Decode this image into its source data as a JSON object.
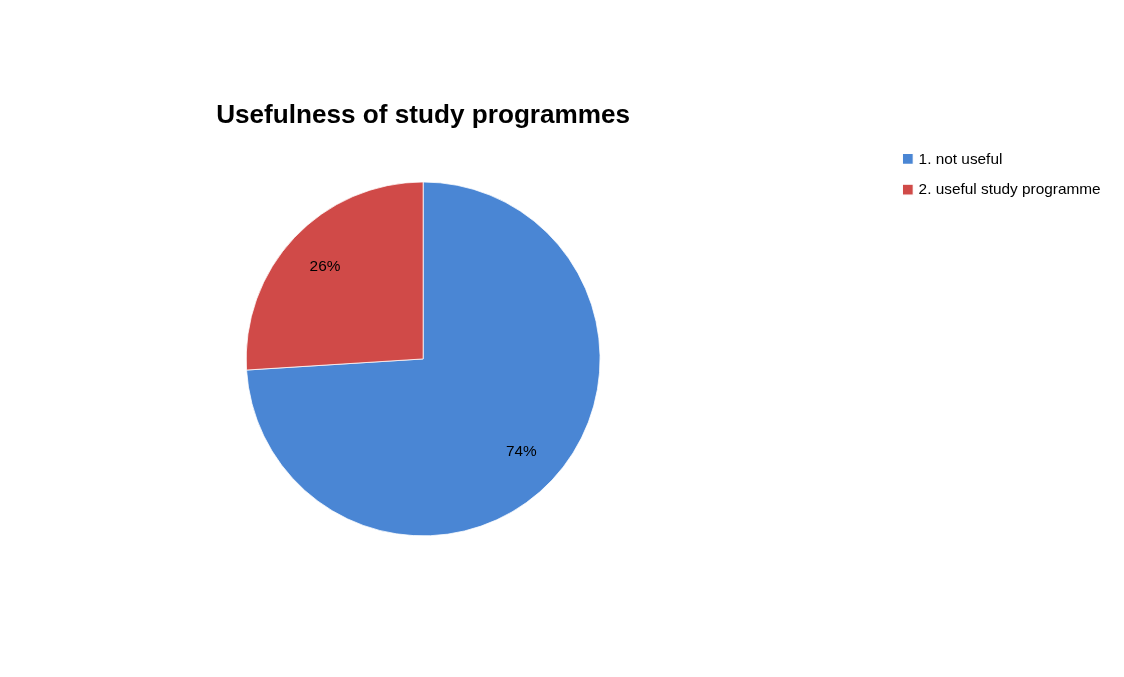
{
  "chart_data": {
    "type": "pie",
    "title": "Usefulness of study programmes",
    "categories": [
      "1. not useful",
      "2. useful study programme"
    ],
    "values": [
      74,
      26
    ],
    "colors": [
      "#4a86d4",
      "#d04a48"
    ],
    "value_labels": [
      "74%",
      "26%"
    ],
    "legend": "right"
  }
}
